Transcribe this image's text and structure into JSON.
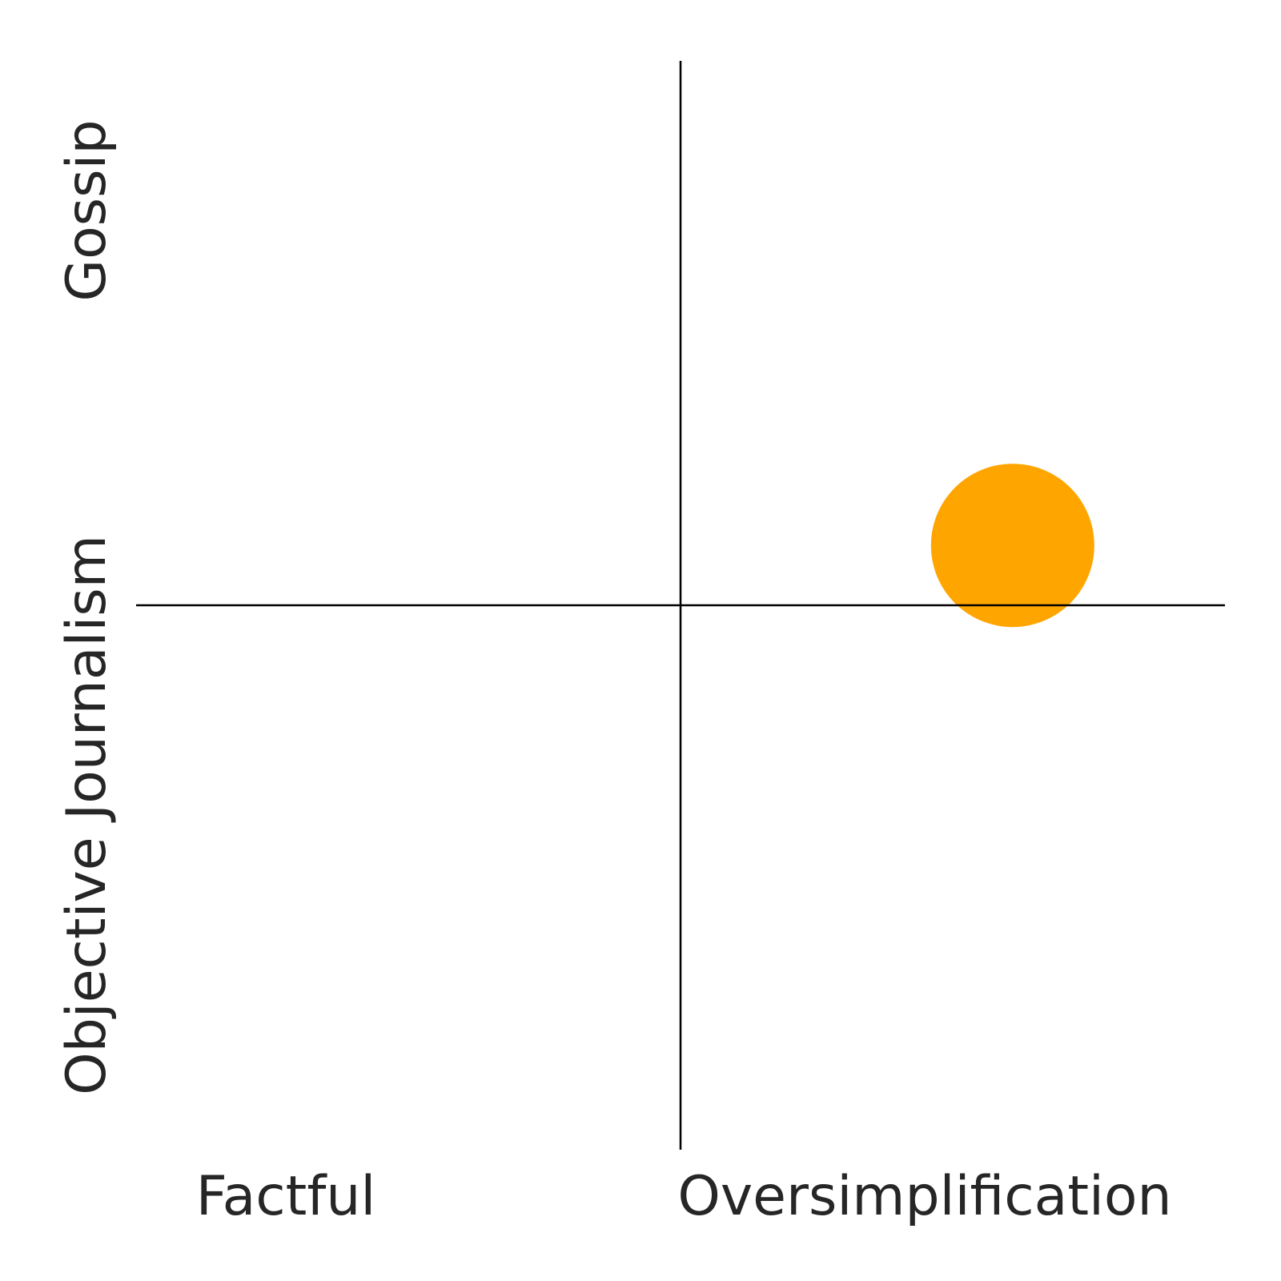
{
  "chart_data": {
    "type": "scatter",
    "title": "",
    "x_axis": {
      "low_label": "Factful",
      "high_label": "Oversimplification",
      "range": [
        -1,
        1
      ],
      "divider": 0
    },
    "y_axis": {
      "low_label": "Objective Journalism",
      "high_label": "Gossip",
      "range": [
        -1,
        1
      ],
      "divider": 0
    },
    "grid": false,
    "legend": "none",
    "points": [
      {
        "x": 0.61,
        "y": 0.11,
        "color": "#FFA500"
      }
    ]
  }
}
